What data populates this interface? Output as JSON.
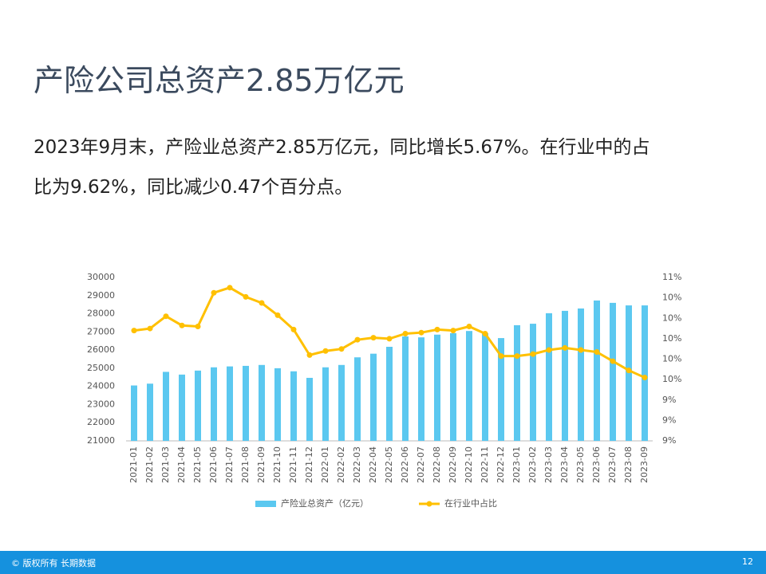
{
  "slide": {
    "title": "产险公司总资产2.85万亿元",
    "body": [
      "2023年9月末，产险业总资产2.85万亿元，同比增长5.67%。在行业中的占",
      "比为9.62%，同比减少0.47个百分点。"
    ],
    "footer": "© 版权所有 长期数据",
    "page": "12"
  },
  "chart_data": {
    "type": "bar-line",
    "categories": [
      "2021-01",
      "2021-02",
      "2021-03",
      "2021-04",
      "2021-05",
      "2021-06",
      "2021-07",
      "2021-08",
      "2021-09",
      "2021-10",
      "2021-11",
      "2021-12",
      "2022-01",
      "2022-02",
      "2022-03",
      "2022-04",
      "2022-05",
      "2022-06",
      "2022-07",
      "2022-08",
      "2022-09",
      "2022-10",
      "2022-11",
      "2022-12",
      "2023-01",
      "2023-02",
      "2023-03",
      "2023-04",
      "2023-05",
      "2023-06",
      "2023-07",
      "2023-08",
      "2023-09"
    ],
    "series": [
      {
        "name": "产险业总资产（亿元）",
        "color": "#5bc8f0",
        "kind": "bar",
        "values": [
          24050,
          24150,
          24800,
          24650,
          24870,
          25050,
          25100,
          25130,
          25180,
          25000,
          24830,
          24470,
          25050,
          25180,
          25600,
          25800,
          26180,
          26750,
          26700,
          26850,
          26930,
          27050,
          26930,
          26660,
          27370,
          27450,
          28030,
          28160,
          28290,
          28730,
          28600,
          28460,
          28460
        ]
      },
      {
        "name": "在行业中占比",
        "color": "#ffc000",
        "kind": "line",
        "axis": "y2",
        "values": [
          10.08,
          10.1,
          10.22,
          10.13,
          10.12,
          10.45,
          10.5,
          10.41,
          10.35,
          10.23,
          10.09,
          9.84,
          9.88,
          9.9,
          9.99,
          10.01,
          10.0,
          10.05,
          10.06,
          10.09,
          10.08,
          10.12,
          10.05,
          9.83,
          9.83,
          9.85,
          9.89,
          9.91,
          9.89,
          9.87,
          9.78,
          9.69,
          9.62
        ]
      }
    ],
    "ylim": [
      21000,
      30000
    ],
    "yticks": [
      21000,
      22000,
      23000,
      24000,
      25000,
      26000,
      27000,
      28000,
      29000,
      30000
    ],
    "y2lim": [
      9.0,
      10.6
    ],
    "y2ticks": [
      {
        "value": 9.0,
        "label": "9%"
      },
      {
        "value": 9.2,
        "label": "9%"
      },
      {
        "value": 9.4,
        "label": "9%"
      },
      {
        "value": 9.6,
        "label": "10%"
      },
      {
        "value": 9.8,
        "label": "10%"
      },
      {
        "value": 10.0,
        "label": "10%"
      },
      {
        "value": 10.2,
        "label": "10%"
      },
      {
        "value": 10.4,
        "label": "10%"
      },
      {
        "value": 10.6,
        "label": "11%"
      }
    ],
    "grid": false
  }
}
